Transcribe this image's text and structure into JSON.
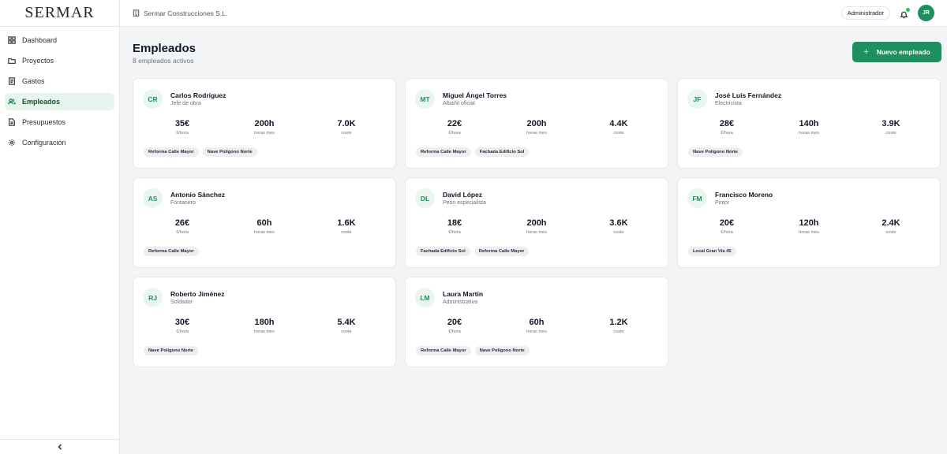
{
  "app": {
    "logo": "SERMAR",
    "company": "Sermar Construcciones S.L.",
    "role": "Administrador",
    "user_initials": "JR"
  },
  "sidebar": {
    "items": [
      {
        "label": "Dashboard",
        "icon": "dashboard-icon"
      },
      {
        "label": "Proyectos",
        "icon": "folder-icon"
      },
      {
        "label": "Gastos",
        "icon": "receipt-icon"
      },
      {
        "label": "Empleados",
        "icon": "users-icon",
        "active": true
      },
      {
        "label": "Presupuestos",
        "icon": "document-icon"
      },
      {
        "label": "Configuración",
        "icon": "gear-icon"
      }
    ],
    "collapse_icon": "chevron-left-icon"
  },
  "page": {
    "title": "Empleados",
    "subtitle": "8 empleados activos",
    "new_button": "Nuevo empleado"
  },
  "employees": [
    {
      "initials": "CR",
      "name": "Carlos Rodríguez",
      "role": "Jefe de obra",
      "rate": "35€",
      "rate_label": "€/hora",
      "hours": "200h",
      "hours_label": "horas mes",
      "cost": "7.0K",
      "cost_label": "coste",
      "projects": [
        "Reforma Calle Mayor",
        "Nave Polígono Norte"
      ]
    },
    {
      "initials": "MT",
      "name": "Miguel Ángel Torres",
      "role": "Albañil oficial",
      "rate": "22€",
      "rate_label": "€/hora",
      "hours": "200h",
      "hours_label": "horas mes",
      "cost": "4.4K",
      "cost_label": "coste",
      "projects": [
        "Reforma Calle Mayor",
        "Fachada Edificio Sol"
      ]
    },
    {
      "initials": "JF",
      "name": "José Luis Fernández",
      "role": "Electricista",
      "rate": "28€",
      "rate_label": "€/hora",
      "hours": "140h",
      "hours_label": "horas mes",
      "cost": "3.9K",
      "cost_label": "coste",
      "projects": [
        "Nave Polígono Norte"
      ]
    },
    {
      "initials": "AS",
      "name": "Antonio Sánchez",
      "role": "Fontanero",
      "rate": "26€",
      "rate_label": "€/hora",
      "hours": "60h",
      "hours_label": "horas mes",
      "cost": "1.6K",
      "cost_label": "coste",
      "projects": [
        "Reforma Calle Mayor"
      ]
    },
    {
      "initials": "DL",
      "name": "David López",
      "role": "Peón especialista",
      "rate": "18€",
      "rate_label": "€/hora",
      "hours": "200h",
      "hours_label": "horas mes",
      "cost": "3.6K",
      "cost_label": "coste",
      "projects": [
        "Fachada Edificio Sol",
        "Reforma Calle Mayor"
      ]
    },
    {
      "initials": "FM",
      "name": "Francisco Moreno",
      "role": "Pintor",
      "rate": "20€",
      "rate_label": "€/hora",
      "hours": "120h",
      "hours_label": "horas mes",
      "cost": "2.4K",
      "cost_label": "coste",
      "projects": [
        "Local Gran Vía 45"
      ]
    },
    {
      "initials": "RJ",
      "name": "Roberto Jiménez",
      "role": "Soldador",
      "rate": "30€",
      "rate_label": "€/hora",
      "hours": "180h",
      "hours_label": "horas mes",
      "cost": "5.4K",
      "cost_label": "coste",
      "projects": [
        "Nave Polígono Norte"
      ]
    },
    {
      "initials": "LM",
      "name": "Laura Martín",
      "role": "Administrativa",
      "rate": "20€",
      "rate_label": "€/hora",
      "hours": "60h",
      "hours_label": "horas mes",
      "cost": "1.2K",
      "cost_label": "coste",
      "projects": [
        "Reforma Calle Mayor",
        "Nave Polígono Norte"
      ]
    }
  ],
  "colors": {
    "accent": "#1f8f5f",
    "active_bg": "#e8f5ee",
    "page_bg": "#f3f4f6"
  }
}
